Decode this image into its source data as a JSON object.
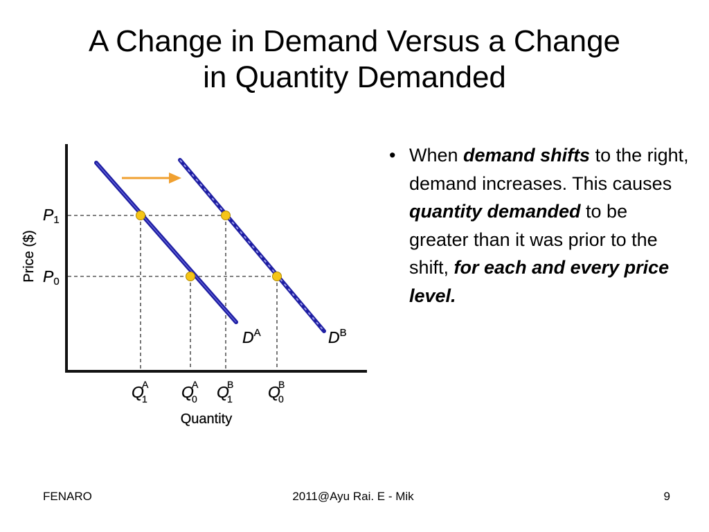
{
  "title": {
    "line1": "A Change in Demand Versus a Change",
    "line2": "in Quantity Demanded"
  },
  "diagram": {
    "y_axis_label": "Price ($)",
    "x_axis_label": "Quantity",
    "price_labels": [
      {
        "symbol": "P",
        "sub": "1"
      },
      {
        "symbol": "P",
        "sub": "0"
      }
    ],
    "curve_labels": [
      {
        "symbol": "D",
        "sup": "A"
      },
      {
        "symbol": "D",
        "sup": "B"
      }
    ],
    "quantity_labels": [
      {
        "symbol": "Q",
        "sup": "A",
        "sub": "1"
      },
      {
        "symbol": "Q",
        "sup": "A",
        "sub": "0"
      },
      {
        "symbol": "Q",
        "sup": "B",
        "sub": "1"
      },
      {
        "symbol": "Q",
        "sup": "B",
        "sub": "0"
      }
    ],
    "colors": {
      "curve": "#1f1fa3",
      "point": "#f5c518",
      "arrow": "#f0a030",
      "guide": "#555555"
    }
  },
  "bullet": {
    "part1": "When ",
    "em1": "demand shifts",
    "part2": " to the right, demand increases. This causes ",
    "em2": "quantity demanded",
    "part3": " to be greater than it was prior to the shift, ",
    "em3": "for each and every price level."
  },
  "footer": {
    "left": "FENARO",
    "center": "2011@Ayu Rai. E - Mik",
    "page": "9"
  }
}
